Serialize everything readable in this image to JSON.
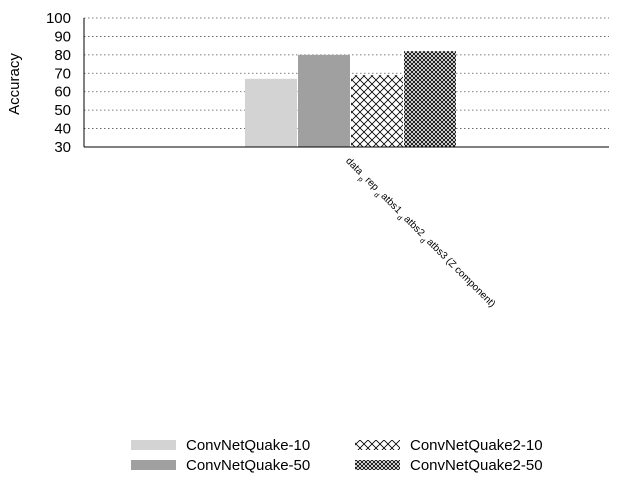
{
  "chart_data": {
    "type": "bar",
    "title": "",
    "xlabel": "",
    "ylabel": "Accuracy",
    "ylim": [
      30,
      100
    ],
    "yticks": [
      30,
      40,
      50,
      60,
      70,
      80,
      90,
      100
    ],
    "grid": "horizontal dotted",
    "legend_position": "bottom",
    "categories": [
      "data_p_rep_d_atbs1_d_atbs2_d_atbs3 (Z component)"
    ],
    "category_label_parts": [
      {
        "text": "data",
        "sub": false
      },
      {
        "text": "p",
        "sub": true
      },
      {
        "text": "rep",
        "sub": false
      },
      {
        "text": "d",
        "sub": true
      },
      {
        "text": "atbs1",
        "sub": false
      },
      {
        "text": "d",
        "sub": true
      },
      {
        "text": "atbs2",
        "sub": false
      },
      {
        "text": "d",
        "sub": true
      },
      {
        "text": "atbs3 (Z component)",
        "sub": false
      }
    ],
    "series": [
      {
        "name": "ConvNetQuake-10",
        "values": [
          67
        ],
        "fill": "#d3d3d3",
        "pattern": "solid"
      },
      {
        "name": "ConvNetQuake-50",
        "values": [
          80
        ],
        "fill": "#a0a0a0",
        "pattern": "solid"
      },
      {
        "name": "ConvNetQuake2-10",
        "values": [
          69
        ],
        "fill": "#000000",
        "pattern": "crosshatch-light"
      },
      {
        "name": "ConvNetQuake2-50",
        "values": [
          82
        ],
        "fill": "#000000",
        "pattern": "crosshatch-dense"
      }
    ]
  }
}
